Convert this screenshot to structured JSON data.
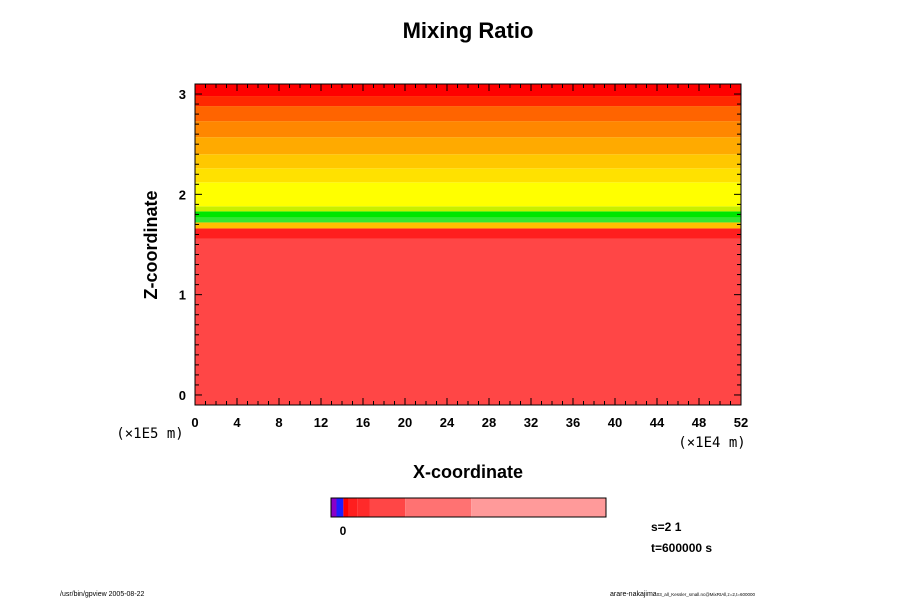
{
  "chart_data": {
    "type": "heatmap",
    "title": "Mixing Ratio",
    "xlabel": "X-coordinate",
    "ylabel": "Z-coordinate",
    "x_ticks": [
      "0",
      "4",
      "8",
      "12",
      "16",
      "20",
      "24",
      "28",
      "32",
      "36",
      "40",
      "44",
      "48",
      "52"
    ],
    "y_ticks": [
      "0",
      "1",
      "2",
      "3"
    ],
    "xlim": [
      0,
      52
    ],
    "ylim": [
      -0.1,
      3.1
    ],
    "x_scale_label": "(×1E4 m)",
    "y_scale_label": "(×1E5 m)",
    "bands": [
      {
        "z_from": -0.1,
        "z_to": 1.56,
        "color": "#ff4646"
      },
      {
        "z_from": 1.56,
        "z_to": 1.66,
        "color": "#ff1e1e"
      },
      {
        "z_from": 1.66,
        "z_to": 1.72,
        "color": "#ffbe00"
      },
      {
        "z_from": 1.72,
        "z_to": 1.77,
        "color": "#32e632"
      },
      {
        "z_from": 1.77,
        "z_to": 1.83,
        "color": "#00e600"
      },
      {
        "z_from": 1.83,
        "z_to": 1.88,
        "color": "#c8f000"
      },
      {
        "z_from": 1.88,
        "z_to": 2.12,
        "color": "#ffff00"
      },
      {
        "z_from": 2.12,
        "z_to": 2.26,
        "color": "#ffe100"
      },
      {
        "z_from": 2.26,
        "z_to": 2.4,
        "color": "#ffc800"
      },
      {
        "z_from": 2.4,
        "z_to": 2.57,
        "color": "#ffaa00"
      },
      {
        "z_from": 2.57,
        "z_to": 2.73,
        "color": "#ff8700"
      },
      {
        "z_from": 2.73,
        "z_to": 2.88,
        "color": "#ff6400"
      },
      {
        "z_from": 2.88,
        "z_to": 2.98,
        "color": "#ff2800"
      },
      {
        "z_from": 2.98,
        "z_to": 3.1,
        "color": "#ff0000"
      }
    ],
    "colorbar": {
      "zero_label": "0",
      "segments": [
        {
          "frac": 0.02,
          "color": "#8a00c8"
        },
        {
          "frac": 0.025,
          "color": "#1e1eff"
        },
        {
          "frac": 0.02,
          "color": "#ff0000"
        },
        {
          "frac": 0.03,
          "color": "#ff1e1e"
        },
        {
          "frac": 0.045,
          "color": "#ff2a2a"
        },
        {
          "frac": 0.13,
          "color": "#ff4646"
        },
        {
          "frac": 0.24,
          "color": "#ff7272"
        },
        {
          "frac": 0.49,
          "color": "#ff9a9a"
        }
      ]
    }
  },
  "annotations": {
    "s_value": "s=2 1",
    "t_value": "t=600000 s",
    "footer_left": "/usr/bin/gpview 2005-08-22",
    "footer_right": "arare-nakajima",
    "footer_right_small": "03_all_Kessler_small.nc@MixRtAll,z=2,t=600000"
  }
}
